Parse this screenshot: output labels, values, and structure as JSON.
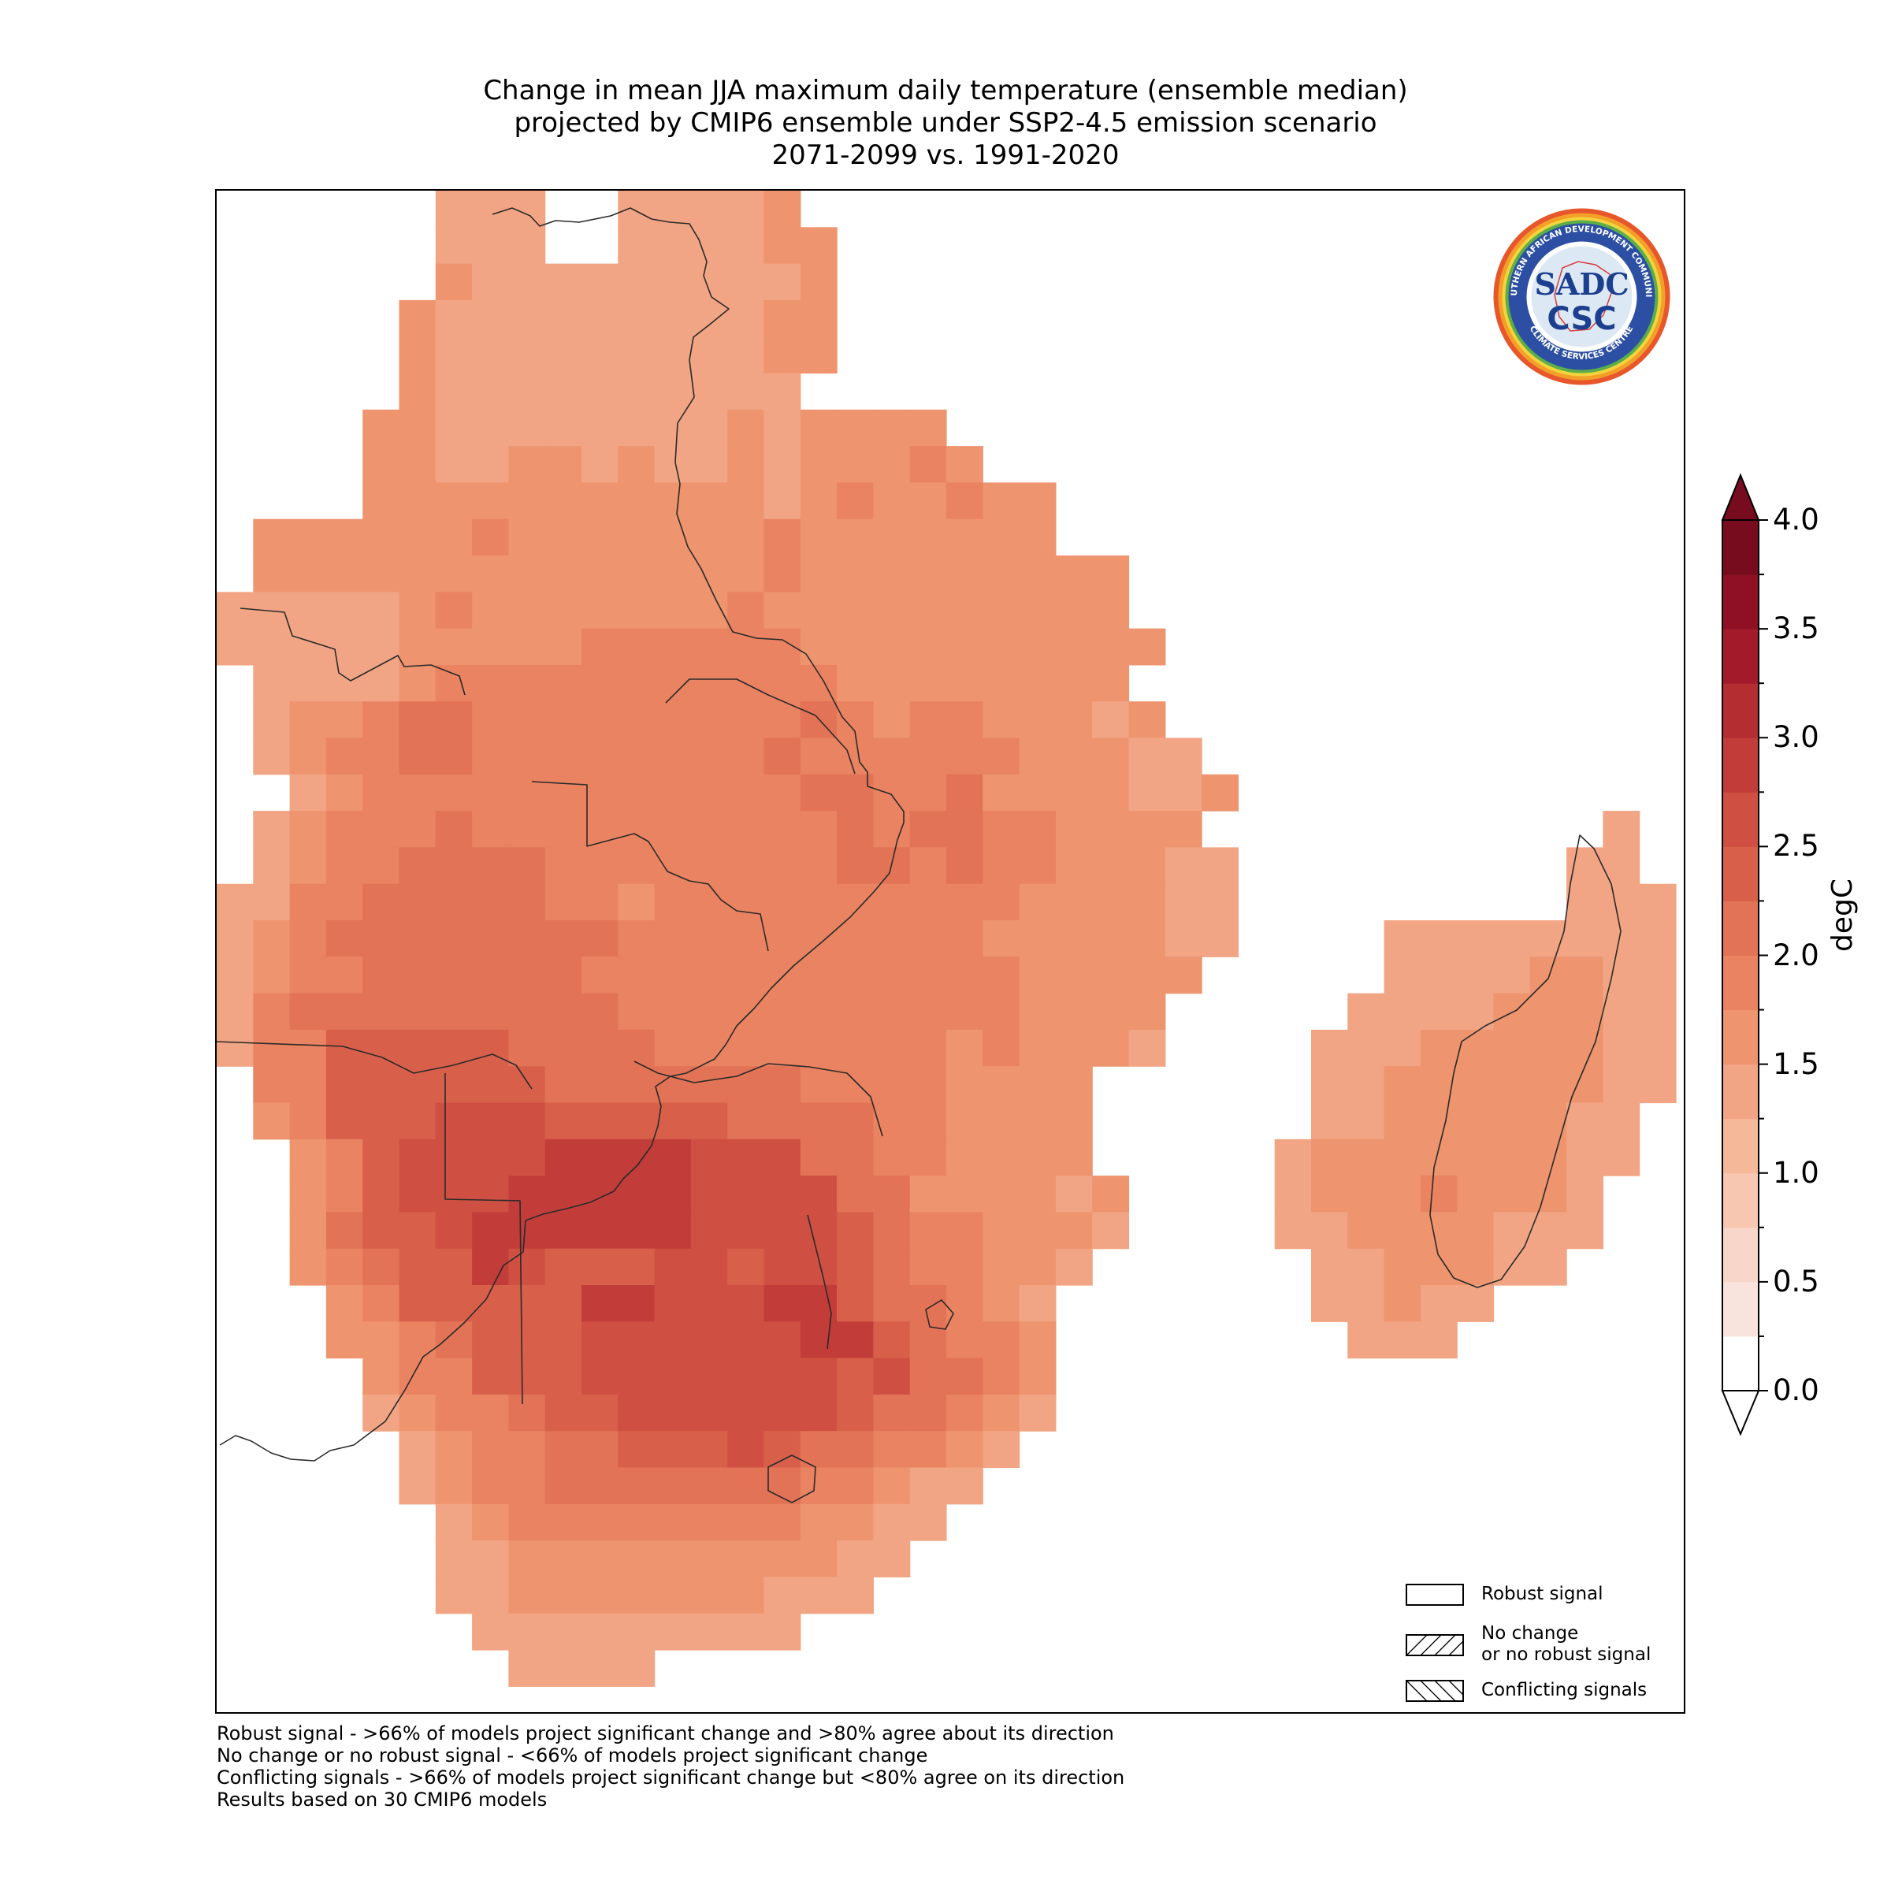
{
  "title": {
    "line1": "Change in mean JJA maximum daily temperature (ensemble median)",
    "line2": "projected by CMIP6 ensemble under SSP2-4.5 emission scenario",
    "line3": "2071-2099 vs. 1991-2020"
  },
  "colorbar": {
    "label": "degC",
    "min": 0.0,
    "max": 4.0,
    "step": 0.25,
    "extend": "both",
    "tick_labels": [
      "0.0",
      "0.5",
      "1.0",
      "1.5",
      "2.0",
      "2.5",
      "3.0",
      "3.5",
      "4.0"
    ],
    "colors": [
      "#ffffff",
      "#f9e4dd",
      "#f8d6c9",
      "#f7c7b2",
      "#f5b899",
      "#f2a584",
      "#ee946f",
      "#e98361",
      "#e27356",
      "#d8604a",
      "#cf5042",
      "#c23d39",
      "#b42d31",
      "#a31b2a",
      "#8f1024",
      "#780c1f"
    ]
  },
  "legend": {
    "items": [
      {
        "label": "Robust signal",
        "hatch": "none"
      },
      {
        "label_line1": "No change",
        "label_line2": "or no robust signal",
        "hatch": "diagonal"
      },
      {
        "label": "Conflicting signals",
        "hatch": "backdiagonal"
      }
    ]
  },
  "notes": [
    "Robust signal - >66% of models project significant change and >80% agree about its direction",
    "No change or no robust signal - <66% of models project significant change",
    "Conflicting signals - >66% of models project significant change but <80% agree on its direction",
    "Results based on 30 CMIP6 models"
  ],
  "logo": {
    "top_text": "SOUTHERN AFRICAN DEVELOPMENT COMMUNITY",
    "bottom_text": "CLIMATE SERVICES CENTRE",
    "center_text_1": "SADC",
    "center_text_2": "CSC"
  },
  "map": {
    "region": "Southern Africa (SADC)",
    "value_field": "change in mean JJA maximum daily temperature (degC)",
    "levels": {
      "a": 1.125,
      "b": 1.375,
      "c": 1.625,
      "d": 1.875,
      "e": 2.125,
      "f": 2.375,
      "g": 2.625,
      "h": 2.875,
      "i": 3.125
    }
  }
}
